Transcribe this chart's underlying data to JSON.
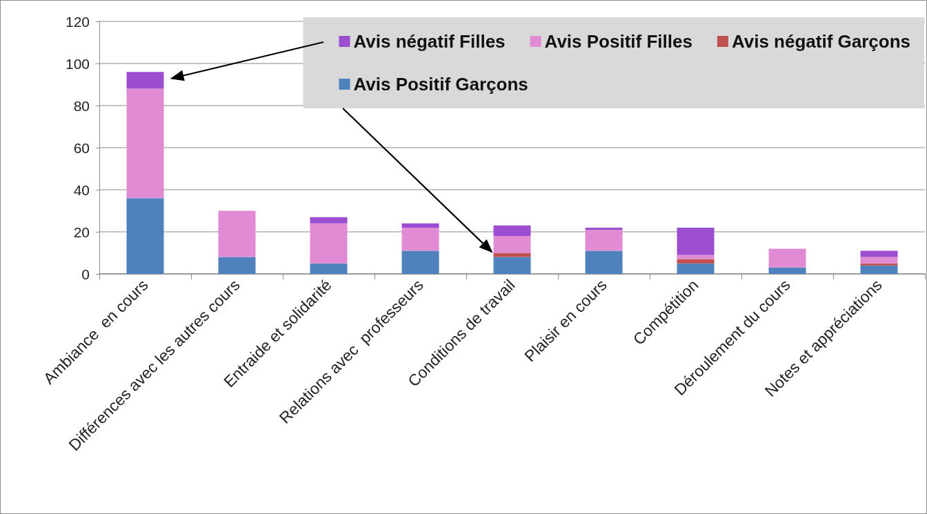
{
  "chart_data": {
    "type": "bar",
    "stacked": true,
    "categories": [
      "Ambiance  en cours",
      "Différences avec les autres cours",
      "Entraide et solidarité",
      "Relations avec  professeurs",
      "Conditions de travail",
      "Plaisir en cours",
      "Compétition",
      "Déroulement du cours",
      "Notes et appréciations"
    ],
    "series": [
      {
        "name": "Avis Positif Garçons",
        "color": "#4f81bd",
        "values": [
          36,
          8,
          5,
          11,
          8,
          11,
          5,
          3,
          4
        ]
      },
      {
        "name": "Avis négatif Garçons",
        "color": "#c0504d",
        "values": [
          0,
          0,
          0,
          0,
          2,
          0,
          2,
          0,
          1
        ]
      },
      {
        "name": "Avis Positif Filles",
        "color": "#e08bd4",
        "values": [
          52,
          22,
          19,
          11,
          8,
          10,
          2,
          9,
          3
        ]
      },
      {
        "name": "Avis négatif Filles",
        "color": "#9b4fd0",
        "values": [
          8,
          0,
          3,
          2,
          5,
          1,
          13,
          0,
          3
        ]
      }
    ],
    "ylim": [
      0,
      120
    ],
    "yticks": [
      0,
      20,
      40,
      60,
      80,
      100,
      120
    ],
    "grid": "y",
    "legend": "top right"
  }
}
